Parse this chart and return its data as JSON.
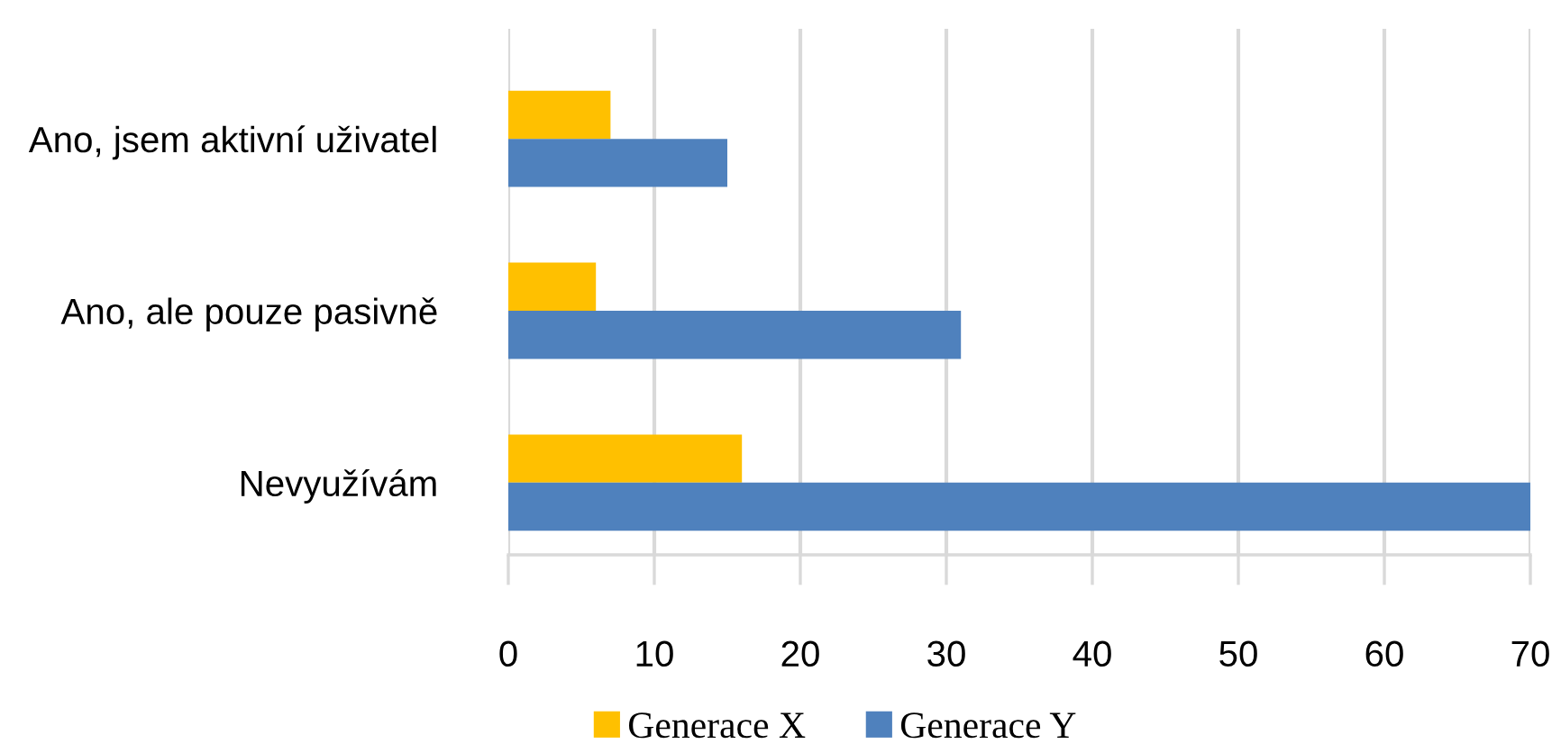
{
  "chart_data": {
    "type": "bar",
    "orientation": "horizontal",
    "categories": [
      "Ano, jsem aktivní uživatel",
      "Ano, ale pouze pasivně",
      "Nevyužívám"
    ],
    "series": [
      {
        "name": "Generace X",
        "color": "#ffc000",
        "values": [
          7,
          6,
          16
        ]
      },
      {
        "name": "Generace Y",
        "color": "#4f81bd",
        "values": [
          15,
          31,
          70
        ]
      }
    ],
    "xlim": [
      0,
      70
    ],
    "xticks": [
      0,
      10,
      20,
      30,
      40,
      50,
      60,
      70
    ],
    "grid": "x",
    "legend": "bottom"
  }
}
